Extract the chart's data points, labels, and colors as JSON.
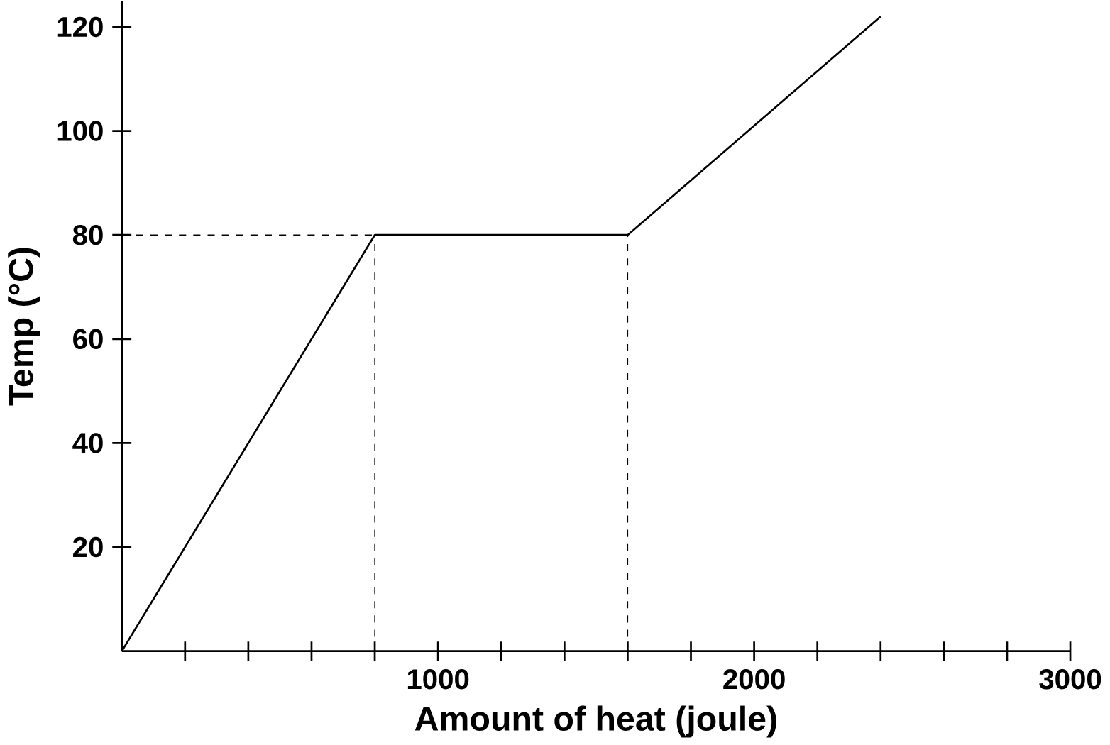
{
  "chart_data": {
    "type": "line",
    "xlabel": "Amount of heat (joule)",
    "ylabel": "Temp (°C)",
    "x": [
      0,
      800,
      1600,
      2400
    ],
    "values": [
      0,
      80,
      80,
      122
    ],
    "color": "#000000",
    "line_style": "solid",
    "marker": "none",
    "xlim": [
      0,
      3000
    ],
    "ylim": [
      0,
      125
    ],
    "xticks": [
      {
        "value": 200,
        "label": null
      },
      {
        "value": 400,
        "label": null
      },
      {
        "value": 600,
        "label": null
      },
      {
        "value": 800,
        "label": null
      },
      1000,
      {
        "value": 1200,
        "label": null
      },
      {
        "value": 1400,
        "label": null
      },
      {
        "value": 1600,
        "label": null
      },
      {
        "value": 1800,
        "label": null
      },
      2000,
      {
        "value": 2200,
        "label": null
      },
      {
        "value": 2400,
        "label": null
      },
      {
        "value": 2600,
        "label": null
      },
      {
        "value": 2800,
        "label": null
      },
      3000
    ],
    "yticks": [
      20,
      40,
      60,
      80,
      100,
      120
    ],
    "ref_lines": [
      {
        "axis": "y",
        "value": 80,
        "line_style": "dashed"
      },
      {
        "axis": "x",
        "value": 800,
        "line_style": "dashed"
      },
      {
        "axis": "x",
        "value": 1600,
        "line_style": "dashed"
      }
    ],
    "grid": false
  }
}
